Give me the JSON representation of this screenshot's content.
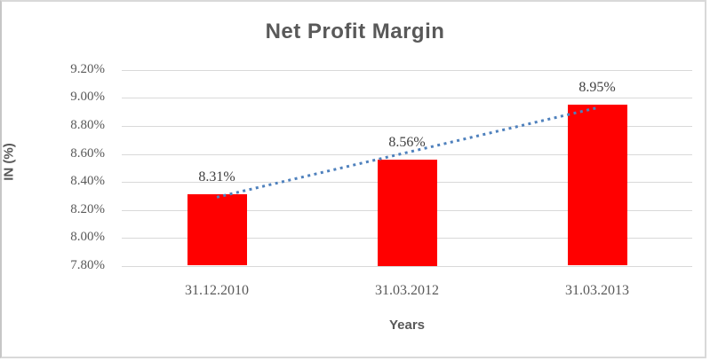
{
  "chart_data": {
    "type": "bar",
    "title": "Net Profit Margin",
    "xlabel": "Years",
    "ylabel": "IN (%)",
    "categories": [
      "31.12.2010",
      "31.03.2012",
      "31.03.2013"
    ],
    "values": [
      8.31,
      8.56,
      8.95
    ],
    "data_labels": [
      "8.31%",
      "8.56%",
      "8.95%"
    ],
    "y_ticks": [
      {
        "label": "9.20%",
        "value": 9.2
      },
      {
        "label": "9.00%",
        "value": 9.0
      },
      {
        "label": "8.80%",
        "value": 8.8
      },
      {
        "label": "8.60%",
        "value": 8.6
      },
      {
        "label": "8.40%",
        "value": 8.4
      },
      {
        "label": "8.20%",
        "value": 8.2
      },
      {
        "label": "8.00%",
        "value": 8.0
      },
      {
        "label": "7.80%",
        "value": 7.8
      }
    ],
    "ylim": [
      7.8,
      9.2
    ],
    "grid": true,
    "legend": false,
    "bar_color": "#FF0000",
    "trendline": {
      "style": "dotted",
      "color": "#4F81BD",
      "start_value": 8.29,
      "end_value": 8.93
    },
    "colors": {
      "title_text": "#595959",
      "axis_text": "#595959",
      "data_label_text": "#404040",
      "gridline": "#D9D9D9",
      "background": "#FFFFFF",
      "border": "#D9D9D9"
    }
  }
}
